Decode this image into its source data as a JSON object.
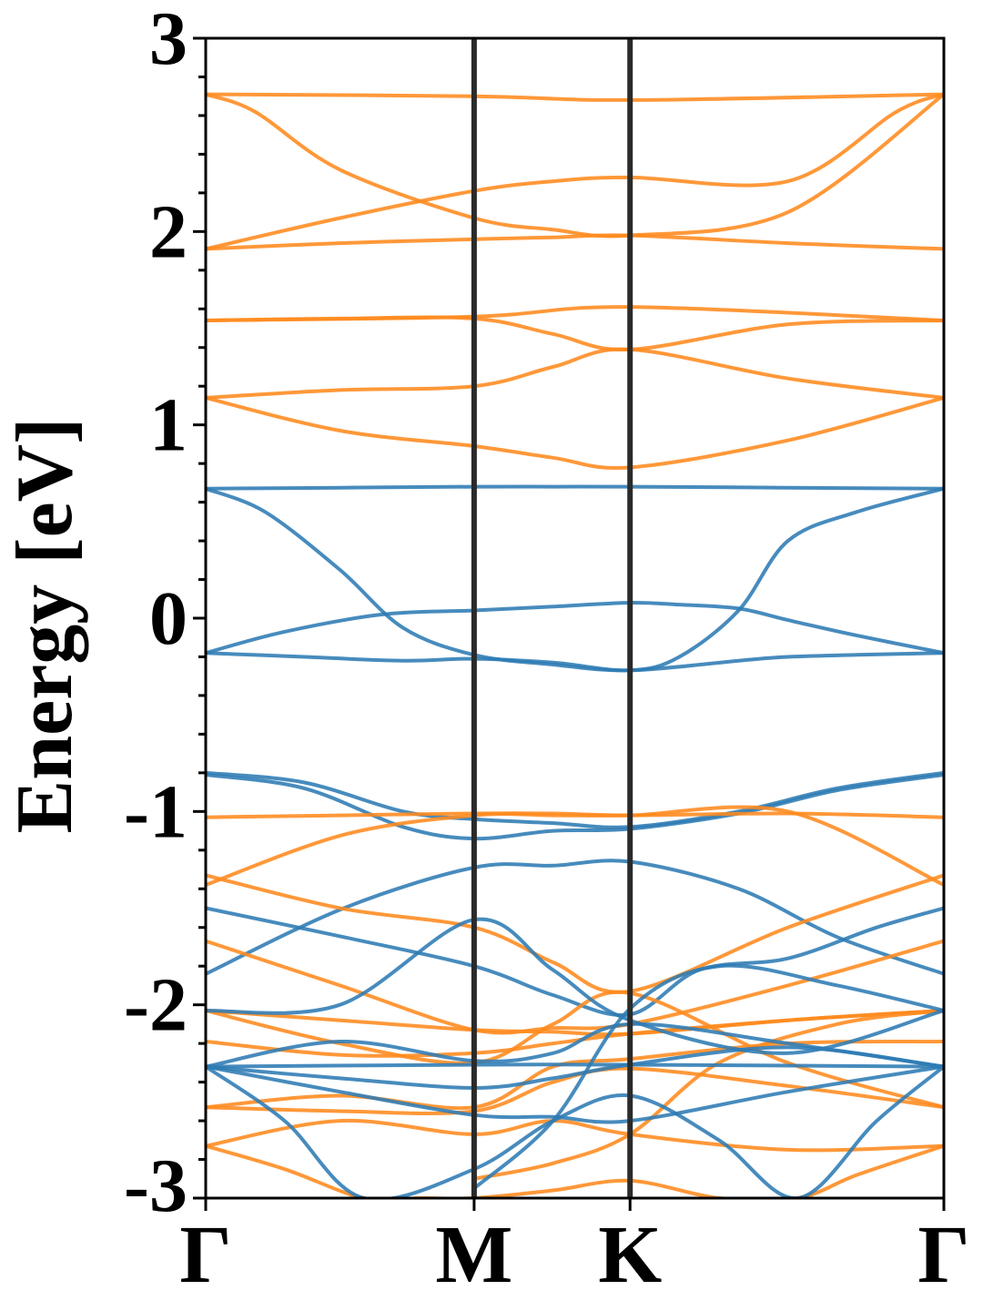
{
  "chart_data": {
    "type": "line",
    "ylabel": "Energy [eV]",
    "xlabel": "",
    "title": "",
    "ylim": [
      -3,
      3
    ],
    "xlim": [
      0,
      3.74
    ],
    "yticks": [
      -3,
      -2,
      -1,
      0,
      1,
      2,
      3
    ],
    "ytick_labels": [
      "-3",
      "-2",
      "-1",
      "0",
      "1",
      "2",
      "3"
    ],
    "y_minor_tick_step": 0.2,
    "kpoints": [
      {
        "label": "Γ",
        "x": 0
      },
      {
        "label": "M",
        "x": 1.36
      },
      {
        "label": "K",
        "x": 2.15
      },
      {
        "label": "Γ",
        "x": 3.74
      }
    ],
    "grid": false,
    "legend": "none",
    "colors": {
      "blue": "#2e7bb4",
      "orange": "#ff8a1e",
      "kline": "#2b2b2b"
    },
    "series": [
      {
        "color": "blue",
        "x": [
          0,
          0.68,
          1.36,
          1.76,
          2.15,
          2.95,
          3.74
        ],
        "y": [
          0.67,
          0.675,
          0.68,
          0.68,
          0.68,
          0.675,
          0.67
        ]
      },
      {
        "color": "blue",
        "x": [
          0,
          0.3,
          0.68,
          1.0,
          1.36,
          1.76,
          2.15,
          2.7,
          2.95,
          3.3,
          3.74
        ],
        "y": [
          0.67,
          0.55,
          0.25,
          -0.05,
          -0.19,
          -0.24,
          -0.27,
          -0.22,
          -0.2,
          -0.19,
          -0.18
        ]
      },
      {
        "color": "blue",
        "x": [
          0,
          0.4,
          0.9,
          1.36,
          1.76,
          2.15,
          2.4,
          2.7,
          2.95,
          3.3,
          3.74
        ],
        "y": [
          -0.18,
          -0.07,
          0.02,
          0.04,
          0.06,
          0.08,
          0.07,
          0.05,
          -0.01,
          -0.09,
          -0.18
        ]
      },
      {
        "color": "blue",
        "x": [
          0,
          0.5,
          1.0,
          1.36,
          1.76,
          2.15,
          2.4,
          2.7,
          2.95,
          3.3,
          3.74
        ],
        "y": [
          -0.18,
          -0.2,
          -0.22,
          -0.21,
          -0.23,
          -0.27,
          -0.2,
          0.04,
          0.4,
          0.55,
          0.67
        ]
      },
      {
        "color": "blue",
        "x": [
          0,
          0.5,
          1.0,
          1.36,
          1.76,
          2.15,
          2.7,
          3.2,
          3.74
        ],
        "y": [
          -0.8,
          -0.85,
          -1.0,
          -1.04,
          -1.06,
          -1.08,
          -1.0,
          -0.88,
          -0.8
        ]
      },
      {
        "color": "blue",
        "x": [
          0,
          0.5,
          1.0,
          1.36,
          1.76,
          2.15,
          2.7,
          3.2,
          3.74
        ],
        "y": [
          -0.81,
          -0.88,
          -1.08,
          -1.14,
          -1.1,
          -1.09,
          -1.01,
          -0.89,
          -0.81
        ]
      },
      {
        "color": "orange",
        "x": [
          0,
          0.68,
          1.36,
          1.76,
          2.15,
          2.95,
          3.74
        ],
        "y": [
          -1.03,
          -1.02,
          -1.01,
          -1.01,
          -1.02,
          -1.01,
          -1.03
        ]
      },
      {
        "color": "blue",
        "x": [
          0,
          0.7,
          1.36,
          1.76,
          2.15,
          2.7,
          3.2,
          3.74
        ],
        "y": [
          -1.84,
          -1.5,
          -1.29,
          -1.28,
          -1.26,
          -1.4,
          -1.65,
          -1.84
        ]
      },
      {
        "color": "blue",
        "x": [
          0,
          0.7,
          1.36,
          1.76,
          2.15,
          2.5,
          2.95,
          3.4,
          3.74
        ],
        "y": [
          -1.5,
          -1.65,
          -1.8,
          -1.95,
          -2.05,
          -1.82,
          -1.76,
          -1.6,
          -1.5
        ]
      },
      {
        "color": "orange",
        "x": [
          0,
          0.7,
          1.36,
          1.76,
          2.15,
          2.95,
          3.74
        ],
        "y": [
          -2.19,
          -2.26,
          -2.25,
          -2.2,
          -2.15,
          -2.08,
          -2.03
        ]
      },
      {
        "color": "orange",
        "x": [
          0,
          0.7,
          1.36,
          1.76,
          2.15,
          2.95,
          3.74
        ],
        "y": [
          -1.38,
          -1.12,
          -1.02,
          -1.02,
          -1.02,
          -1.0,
          -1.38
        ]
      }
    ],
    "orange_extra": [
      {
        "x": [
          0,
          0.25,
          0.68,
          1.36,
          1.76,
          2.15,
          2.95,
          3.74
        ],
        "y": [
          2.71,
          2.62,
          2.32,
          2.07,
          2.01,
          1.98,
          2.1,
          2.71
        ]
      },
      {
        "x": [
          0,
          0.68,
          1.36,
          1.76,
          2.15,
          2.95,
          3.5,
          3.74
        ],
        "y": [
          1.91,
          2.07,
          2.21,
          2.26,
          2.28,
          2.26,
          2.62,
          2.71
        ]
      },
      {
        "x": [
          0,
          1.36,
          2.15,
          3.74
        ],
        "y": [
          2.71,
          2.7,
          2.68,
          2.71
        ]
      },
      {
        "x": [
          0,
          0.68,
          1.36,
          1.76,
          2.15,
          2.95,
          3.74
        ],
        "y": [
          1.91,
          1.94,
          1.96,
          1.97,
          1.98,
          1.94,
          1.91
        ]
      },
      {
        "x": [
          0,
          1.36,
          2.15,
          3.74
        ],
        "y": [
          1.54,
          1.56,
          1.61,
          1.54
        ]
      },
      {
        "x": [
          0,
          0.68,
          1.36,
          1.76,
          2.15,
          2.95,
          3.74
        ],
        "y": [
          1.54,
          1.55,
          1.55,
          1.47,
          1.39,
          1.52,
          1.54
        ]
      },
      {
        "x": [
          0,
          0.68,
          1.36,
          1.76,
          2.15,
          2.95,
          3.74
        ],
        "y": [
          1.14,
          1.18,
          1.2,
          1.3,
          1.39,
          1.24,
          1.14
        ]
      },
      {
        "x": [
          0,
          0.68,
          1.36,
          1.76,
          2.15,
          2.95,
          3.74
        ],
        "y": [
          1.14,
          0.97,
          0.89,
          0.83,
          0.78,
          0.92,
          1.14
        ]
      },
      {
        "x": [
          0,
          0.68,
          1.36,
          1.76,
          2.15,
          2.95,
          3.74
        ],
        "y": [
          -1.33,
          -1.5,
          -1.6,
          -1.78,
          -1.93,
          -1.6,
          -1.33
        ]
      },
      {
        "x": [
          0,
          0.68,
          1.36,
          1.76,
          2.15,
          2.95,
          3.74
        ],
        "y": [
          -1.67,
          -1.9,
          -2.13,
          -2.12,
          -2.1,
          -1.9,
          -1.67
        ]
      },
      {
        "x": [
          0,
          0.68,
          1.36,
          1.76,
          2.15,
          2.95,
          3.74
        ],
        "y": [
          -2.03,
          -2.08,
          -2.13,
          -2.14,
          -2.15,
          -2.08,
          -2.03
        ]
      },
      {
        "x": [
          0,
          0.68,
          1.36,
          1.76,
          2.15,
          2.95,
          3.74
        ],
        "y": [
          -2.03,
          -2.2,
          -2.3,
          -2.1,
          -1.94,
          -2.3,
          -2.53
        ]
      },
      {
        "x": [
          0,
          0.68,
          1.36,
          1.76,
          2.15,
          2.95,
          3.74
        ],
        "y": [
          -2.53,
          -2.55,
          -2.55,
          -2.4,
          -2.33,
          -2.42,
          -2.53
        ]
      },
      {
        "x": [
          0,
          0.68,
          1.36,
          1.76,
          2.15,
          2.95,
          3.74
        ],
        "y": [
          -2.53,
          -2.47,
          -2.53,
          -2.32,
          -2.28,
          -2.2,
          -2.19
        ]
      },
      {
        "x": [
          0,
          0.68,
          1.36,
          1.76,
          2.15,
          2.95,
          3.74
        ],
        "y": [
          -2.73,
          -2.6,
          -2.67,
          -2.6,
          -2.67,
          -2.75,
          -2.73
        ]
      },
      {
        "x": [
          0,
          0.4,
          0.8,
          1.1,
          1.36,
          1.76,
          2.15,
          2.6,
          3.0,
          3.3,
          3.74
        ],
        "y": [
          -2.73,
          -2.85,
          -3.0,
          -3.0,
          -3.0,
          -2.96,
          -2.91,
          -3.0,
          -3.0,
          -2.88,
          -2.73
        ]
      },
      {
        "x": [
          1.36,
          1.76,
          2.15,
          2.6,
          3.2,
          3.74
        ],
        "y": [
          -2.9,
          -2.82,
          -2.67,
          -2.3,
          -2.1,
          -2.03
        ]
      }
    ],
    "blue_extra": [
      {
        "x": [
          0,
          0.68,
          1.36,
          1.76,
          2.15,
          2.95,
          3.74
        ],
        "y": [
          -2.03,
          -2.0,
          -1.56,
          -1.82,
          -2.08,
          -2.25,
          -2.03
        ]
      },
      {
        "x": [
          0,
          0.68,
          1.36,
          1.76,
          2.15,
          2.95,
          3.74
        ],
        "y": [
          -2.32,
          -2.19,
          -2.29,
          -2.25,
          -2.1,
          -2.2,
          -2.32
        ]
      },
      {
        "x": [
          0,
          1.36,
          2.15,
          3.74
        ],
        "y": [
          -2.32,
          -2.31,
          -2.31,
          -2.32
        ]
      },
      {
        "x": [
          0,
          0.68,
          1.36,
          1.76,
          2.15,
          2.95,
          3.74
        ],
        "y": [
          -2.32,
          -2.38,
          -2.43,
          -2.38,
          -2.31,
          -2.22,
          -2.32
        ]
      },
      {
        "x": [
          0,
          0.68,
          1.36,
          1.76,
          2.15,
          2.95,
          3.74
        ],
        "y": [
          -2.32,
          -2.45,
          -2.57,
          -2.58,
          -2.6,
          -2.45,
          -2.32
        ]
      },
      {
        "x": [
          0,
          0.4,
          0.8,
          1.36,
          1.76,
          2.15,
          2.6,
          3.0,
          3.4,
          3.74
        ],
        "y": [
          -2.32,
          -2.6,
          -3.0,
          -2.85,
          -2.6,
          -2.47,
          -2.7,
          -3.0,
          -2.6,
          -2.32
        ]
      },
      {
        "x": [
          1.36,
          1.76,
          2.15,
          2.6,
          3.2,
          3.74
        ],
        "y": [
          -2.95,
          -2.6,
          -2.02,
          -1.8,
          -1.9,
          -2.03
        ]
      }
    ]
  }
}
